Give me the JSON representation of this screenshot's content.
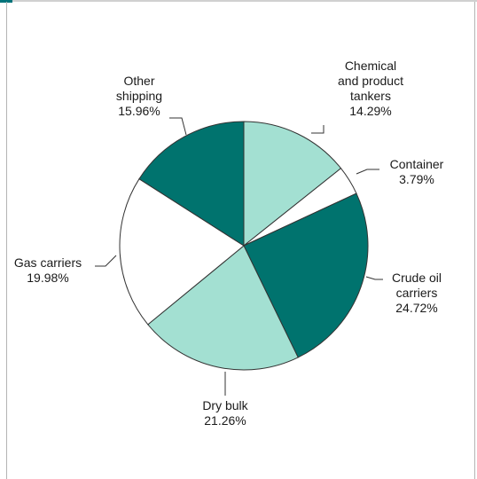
{
  "chart_data": {
    "type": "pie",
    "title": "",
    "slices": [
      {
        "label_lines": [
          "Chemical",
          "and product",
          "tankers"
        ],
        "value": 14.29,
        "value_text": "14.29%",
        "color": "#a3e0d2"
      },
      {
        "label_lines": [
          "Container"
        ],
        "value": 3.79,
        "value_text": "3.79%",
        "color": "#ffffff"
      },
      {
        "label_lines": [
          "Crude oil",
          "carriers"
        ],
        "value": 24.72,
        "value_text": "24.72%",
        "color": "#00736e"
      },
      {
        "label_lines": [
          "Dry bulk"
        ],
        "value": 21.26,
        "value_text": "21.26%",
        "color": "#a3e0d2"
      },
      {
        "label_lines": [
          "Gas carriers"
        ],
        "value": 19.98,
        "value_text": "19.98%",
        "color": "#ffffff"
      },
      {
        "label_lines": [
          "Other",
          "shipping"
        ],
        "value": 15.96,
        "value_text": "15.96%",
        "color": "#00736e"
      }
    ],
    "start_angle_deg": 0,
    "direction": "clockwise"
  },
  "colors": {
    "stroke": "#333333",
    "accent": "#00737a"
  }
}
